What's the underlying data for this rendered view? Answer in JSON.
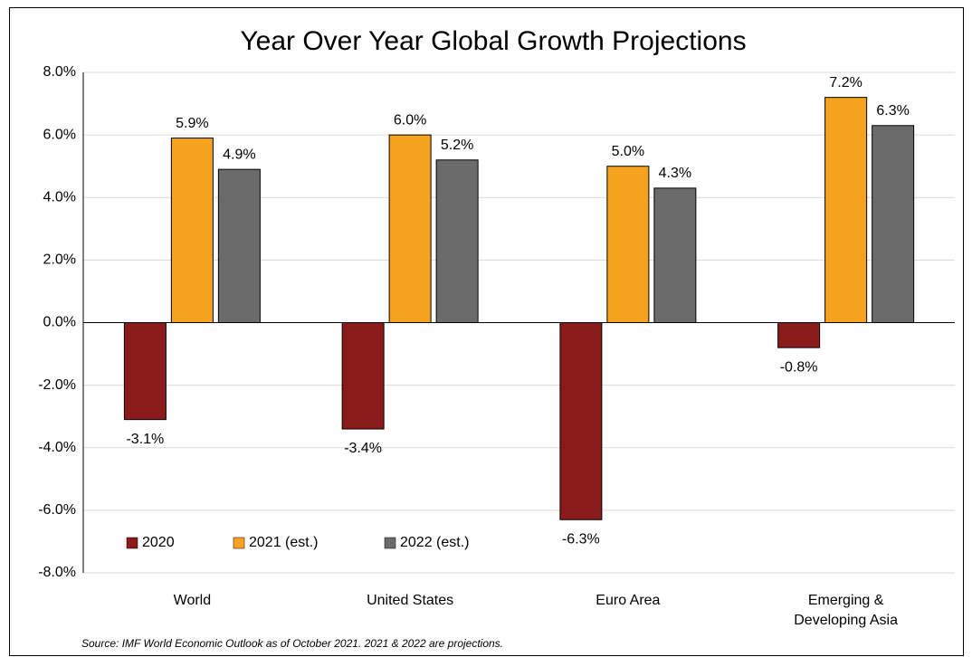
{
  "chart_data": {
    "type": "bar",
    "title": "Year Over Year Global Growth Projections",
    "categories": [
      "World",
      "United States",
      "Euro Area",
      "Emerging & Developing Asia"
    ],
    "series": [
      {
        "name": "2020",
        "color": "#8b1a1a",
        "values": [
          -3.1,
          -3.4,
          -6.3,
          -0.8
        ],
        "value_labels": [
          "-3.1%",
          "-3.4%",
          "-6.3%",
          "-0.8%"
        ]
      },
      {
        "name": "2021 (est.)",
        "color": "#f5a31e",
        "values": [
          5.9,
          6.0,
          5.0,
          7.2
        ],
        "value_labels": [
          "5.9%",
          "6.0%",
          "5.0%",
          "7.2%"
        ]
      },
      {
        "name": "2022 (est.)",
        "color": "#6b6b6b",
        "values": [
          4.9,
          5.2,
          4.3,
          6.3
        ],
        "value_labels": [
          "4.9%",
          "5.2%",
          "4.3%",
          "6.3%"
        ]
      }
    ],
    "ylim": [
      -8,
      8
    ],
    "yticks": [
      {
        "value": -8,
        "label": "-8.0%"
      },
      {
        "value": -6,
        "label": "-6.0%"
      },
      {
        "value": -4,
        "label": "-4.0%"
      },
      {
        "value": -2,
        "label": "-2.0%"
      },
      {
        "value": 0,
        "label": "0.0%"
      },
      {
        "value": 2,
        "label": "2.0%"
      },
      {
        "value": 4,
        "label": "4.0%"
      },
      {
        "value": 6,
        "label": "6.0%"
      },
      {
        "value": 8,
        "label": "8.0%"
      }
    ],
    "grid": true,
    "legend": "lower left",
    "source": "Source:  IMF World Economic Outlook as of October 2021.  2021 & 2022 are projections."
  }
}
